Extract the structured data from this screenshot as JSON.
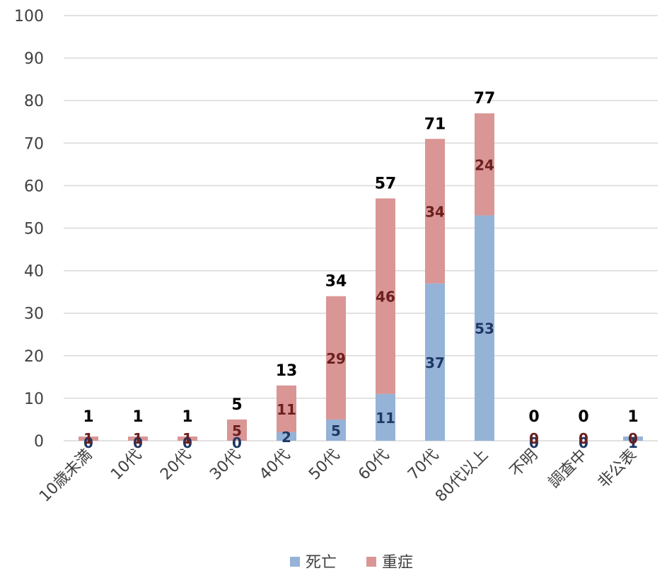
{
  "chart_data": {
    "type": "bar",
    "stacked": true,
    "categories": [
      "10歳未満",
      "10代",
      "20代",
      "30代",
      "40代",
      "50代",
      "60代",
      "70代",
      "80代以上",
      "不明",
      "調査中",
      "非公表"
    ],
    "series": [
      {
        "name": "死亡",
        "color": "#95b3d7",
        "label_color": "#1f3864",
        "values": [
          0,
          0,
          0,
          0,
          2,
          5,
          11,
          37,
          53,
          0,
          0,
          1
        ]
      },
      {
        "name": "重症",
        "color": "#d99694",
        "label_color": "#6b1f1f",
        "values": [
          1,
          1,
          1,
          5,
          11,
          29,
          46,
          34,
          24,
          0,
          0,
          0
        ]
      }
    ],
    "totals": [
      1,
      1,
      1,
      5,
      13,
      34,
      57,
      71,
      77,
      0,
      0,
      1
    ],
    "ylim": [
      0,
      100
    ],
    "yticks": [
      0,
      10,
      20,
      30,
      40,
      50,
      60,
      70,
      80,
      90,
      100
    ],
    "grid": true,
    "legend_position": "bottom"
  }
}
